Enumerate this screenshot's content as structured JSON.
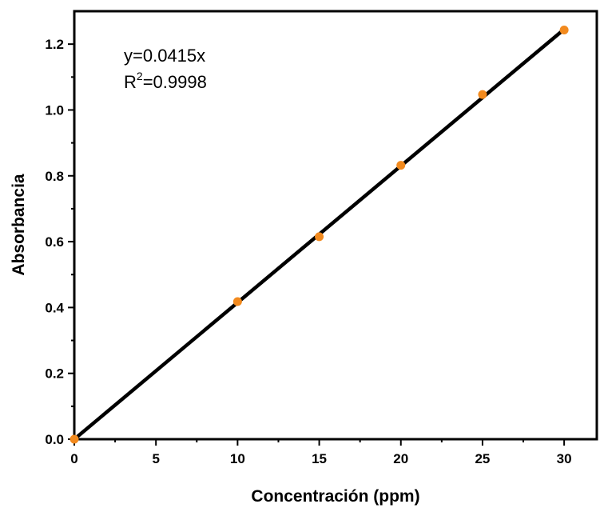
{
  "chart_data": {
    "type": "scatter",
    "xlabel": "Concentración (ppm)",
    "ylabel": "Absorbancia",
    "xlim": [
      0,
      32
    ],
    "ylim": [
      0,
      1.3
    ],
    "xticks": [
      "0",
      "5",
      "10",
      "15",
      "20",
      "25",
      "30"
    ],
    "yticks": [
      "0.0",
      "0.2",
      "0.4",
      "0.6",
      "0.8",
      "1.0",
      "1.2"
    ],
    "grid": false,
    "series": [
      {
        "x": [
          0,
          10,
          15,
          20,
          25,
          30
        ],
        "y": [
          0.0,
          0.418,
          0.615,
          0.832,
          1.047,
          1.243
        ],
        "color": "#f28a1e"
      }
    ],
    "fit": {
      "slope": 0.0415,
      "x_range": [
        0,
        30
      ],
      "color": "#000000"
    },
    "annotation": {
      "equation": "y=0.0415x",
      "r2_prefix": "R",
      "r2_exponent": "2",
      "r2_value": "=0.9998"
    }
  }
}
